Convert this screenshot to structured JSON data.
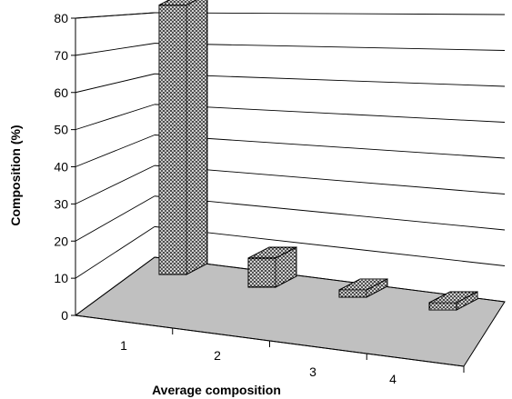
{
  "chart_data": {
    "type": "bar",
    "style": "3d",
    "categories": [
      "1",
      "2",
      "3",
      "4"
    ],
    "values": [
      74,
      8,
      2,
      1
    ],
    "xlabel": "Average composition",
    "ylabel": "Composition (%)",
    "ylim": [
      0,
      80
    ],
    "yticks": [
      "0",
      "10",
      "20",
      "30",
      "40",
      "50",
      "60",
      "70",
      "80"
    ],
    "grid": true,
    "legend": "none",
    "colors": {
      "floor": "#c0c0c0",
      "bar_fill": "#ffffff",
      "bar_pattern": "#000000",
      "axis": "#000000"
    }
  }
}
